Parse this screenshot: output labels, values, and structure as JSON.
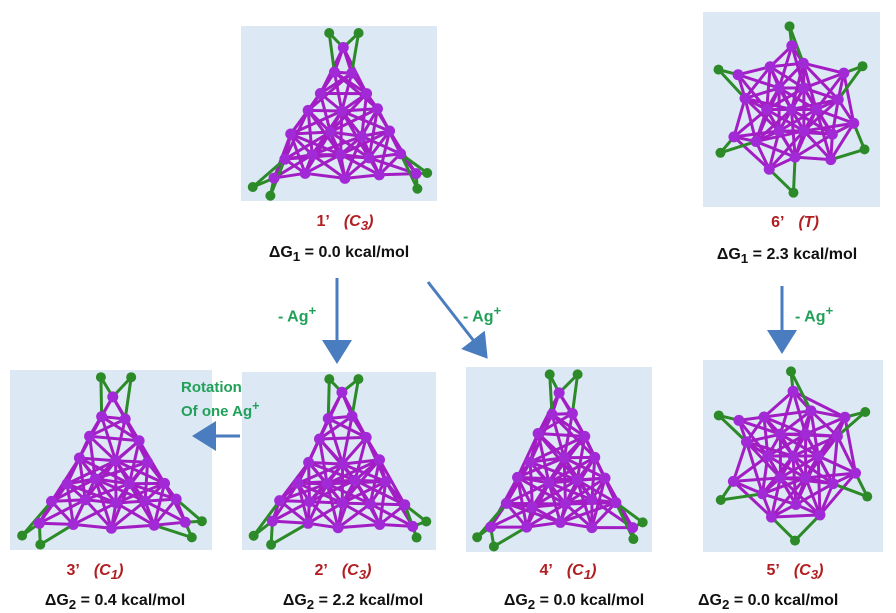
{
  "colors": {
    "silver": "#a12ad6",
    "bond": "#a21ec4",
    "ligand": "#2c8a28",
    "panel": "#dce8f4",
    "arrow": "#4a7cc0",
    "label": "#b01e22",
    "step": "#22a05a"
  },
  "structures": [
    {
      "id": "1",
      "name": "1’",
      "sym": "C",
      "sub": "3",
      "energy_prefix": "ΔG",
      "energy_index": "1",
      "energy_value": " = 0.0 kcal/mol"
    },
    {
      "id": "6",
      "name": "6’",
      "sym": "T",
      "sub": "",
      "energy_prefix": "ΔG",
      "energy_index": "1",
      "energy_value": " = 2.3 kcal/mol"
    },
    {
      "id": "3",
      "name": "3’",
      "sym": "C",
      "sub": "1",
      "energy_prefix": "ΔG",
      "energy_index": "2",
      "energy_value": " = 0.4 kcal/mol"
    },
    {
      "id": "2",
      "name": "2’",
      "sym": "C",
      "sub": "3",
      "energy_prefix": "ΔG",
      "energy_index": "2",
      "energy_value": " = 2.2 kcal/mol"
    },
    {
      "id": "4",
      "name": "4’",
      "sym": "C",
      "sub": "1",
      "energy_prefix": "ΔG",
      "energy_index": "2",
      "energy_value": " = 0.0 kcal/mol"
    },
    {
      "id": "5",
      "name": "5’",
      "sym": "C",
      "sub": "3",
      "energy_prefix": "ΔG",
      "energy_index": "2",
      "energy_value": " = 0.0 kcal/mol"
    }
  ],
  "steps": {
    "loss_left": "- Ag",
    "loss_mid": "- Ag",
    "loss_right": "- Ag",
    "plus": "+",
    "rotation_line1": "Rotation",
    "rotation_line2": "Of one Ag",
    "rotation_plus": "+"
  }
}
